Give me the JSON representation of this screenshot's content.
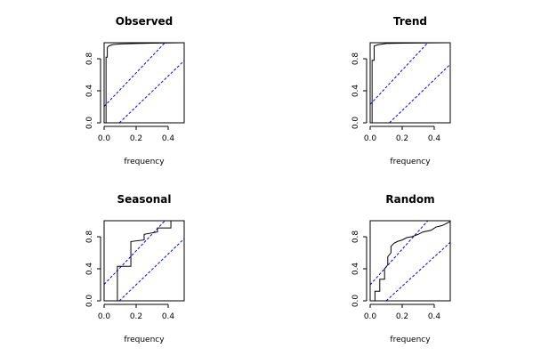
{
  "chart_data": [
    {
      "type": "line",
      "title": "Observed",
      "xlabel": "frequency",
      "ylabel": "",
      "xlim": [
        0,
        0.5
      ],
      "ylim": [
        0,
        1
      ],
      "x_ticks": [
        0.0,
        0.2,
        0.4
      ],
      "x_tick_labels": [
        "0.0",
        "0.2",
        "0.4"
      ],
      "y_ticks": [
        0.0,
        0.4,
        0.8
      ],
      "y_tick_labels": [
        "0.0",
        "0.4",
        "0.8"
      ],
      "step": true,
      "cumulative_periodogram": [
        [
          0,
          0
        ],
        [
          0.012,
          0
        ],
        [
          0.012,
          0.82
        ],
        [
          0.02,
          0.82
        ],
        [
          0.02,
          0.94
        ],
        [
          0.03,
          0.96
        ],
        [
          0.05,
          0.975
        ],
        [
          0.1,
          0.985
        ],
        [
          0.2,
          0.99
        ],
        [
          0.3,
          0.995
        ],
        [
          0.5,
          1.0
        ]
      ],
      "confidence_bands": {
        "color": "#0000ff",
        "upper": [
          [
            0,
            0.205
          ],
          [
            0.38,
            1.0
          ]
        ],
        "lower": [
          [
            0.095,
            0
          ],
          [
            0.5,
            0.775
          ]
        ]
      },
      "line_color": "#000000"
    },
    {
      "type": "line",
      "title": "Trend",
      "xlabel": "frequency",
      "ylabel": "",
      "xlim": [
        0,
        0.5
      ],
      "ylim": [
        0,
        1
      ],
      "x_ticks": [
        0.0,
        0.2,
        0.4
      ],
      "x_tick_labels": [
        "0.0",
        "0.2",
        "0.4"
      ],
      "y_ticks": [
        0.0,
        0.4,
        0.8
      ],
      "y_tick_labels": [
        "0.0",
        "0.4",
        "0.8"
      ],
      "step": true,
      "cumulative_periodogram": [
        [
          0,
          0
        ],
        [
          0.012,
          0
        ],
        [
          0.012,
          0.78
        ],
        [
          0.025,
          0.78
        ],
        [
          0.025,
          0.96
        ],
        [
          0.05,
          0.975
        ],
        [
          0.1,
          0.99
        ],
        [
          0.2,
          0.995
        ],
        [
          0.5,
          1.0
        ]
      ],
      "confidence_bands": {
        "color": "#0000ff",
        "upper": [
          [
            0,
            0.23
          ],
          [
            0.36,
            1.0
          ]
        ],
        "lower": [
          [
            0.12,
            0
          ],
          [
            0.5,
            0.73
          ]
        ]
      },
      "line_color": "#000000"
    },
    {
      "type": "line",
      "title": "Seasonal",
      "xlabel": "frequency",
      "ylabel": "",
      "xlim": [
        0,
        0.5
      ],
      "ylim": [
        0,
        1
      ],
      "x_ticks": [
        0.0,
        0.2,
        0.4
      ],
      "x_tick_labels": [
        "0.0",
        "0.2",
        "0.4"
      ],
      "y_ticks": [
        0.0,
        0.4,
        0.8
      ],
      "y_tick_labels": [
        "0.0",
        "0.4",
        "0.8"
      ],
      "step": true,
      "cumulative_periodogram": [
        [
          0,
          0
        ],
        [
          0.083,
          0
        ],
        [
          0.083,
          0.43
        ],
        [
          0.167,
          0.43
        ],
        [
          0.167,
          0.74
        ],
        [
          0.25,
          0.76
        ],
        [
          0.25,
          0.83
        ],
        [
          0.333,
          0.86
        ],
        [
          0.333,
          0.91
        ],
        [
          0.417,
          0.91
        ],
        [
          0.417,
          1.0
        ],
        [
          0.5,
          1.0
        ]
      ],
      "confidence_bands": {
        "color": "#0000ff",
        "upper": [
          [
            0,
            0.205
          ],
          [
            0.38,
            1.0
          ]
        ],
        "lower": [
          [
            0.095,
            0
          ],
          [
            0.5,
            0.775
          ]
        ]
      },
      "line_color": "#000000"
    },
    {
      "type": "line",
      "title": "Random",
      "xlabel": "frequency",
      "ylabel": "",
      "xlim": [
        0,
        0.5
      ],
      "ylim": [
        0,
        1
      ],
      "x_ticks": [
        0.0,
        0.2,
        0.4
      ],
      "x_tick_labels": [
        "0.0",
        "0.2",
        "0.4"
      ],
      "y_ticks": [
        0.0,
        0.4,
        0.8
      ],
      "y_tick_labels": [
        "0.0",
        "0.4",
        "0.8"
      ],
      "step": true,
      "cumulative_periodogram": [
        [
          0,
          0
        ],
        [
          0.03,
          0
        ],
        [
          0.03,
          0.12
        ],
        [
          0.06,
          0.12
        ],
        [
          0.06,
          0.27
        ],
        [
          0.09,
          0.27
        ],
        [
          0.09,
          0.4
        ],
        [
          0.11,
          0.45
        ],
        [
          0.11,
          0.55
        ],
        [
          0.13,
          0.6
        ],
        [
          0.13,
          0.68
        ],
        [
          0.15,
          0.72
        ],
        [
          0.17,
          0.74
        ],
        [
          0.2,
          0.76
        ],
        [
          0.23,
          0.79
        ],
        [
          0.26,
          0.8
        ],
        [
          0.3,
          0.83
        ],
        [
          0.33,
          0.86
        ],
        [
          0.38,
          0.88
        ],
        [
          0.41,
          0.92
        ],
        [
          0.45,
          0.94
        ],
        [
          0.48,
          0.97
        ],
        [
          0.5,
          0.99
        ]
      ],
      "confidence_bands": {
        "color": "#0000ff",
        "upper": [
          [
            0,
            0.2
          ],
          [
            0.36,
            1.0
          ]
        ],
        "lower": [
          [
            0.1,
            0
          ],
          [
            0.5,
            0.73
          ]
        ]
      },
      "line_color": "#000000"
    }
  ]
}
